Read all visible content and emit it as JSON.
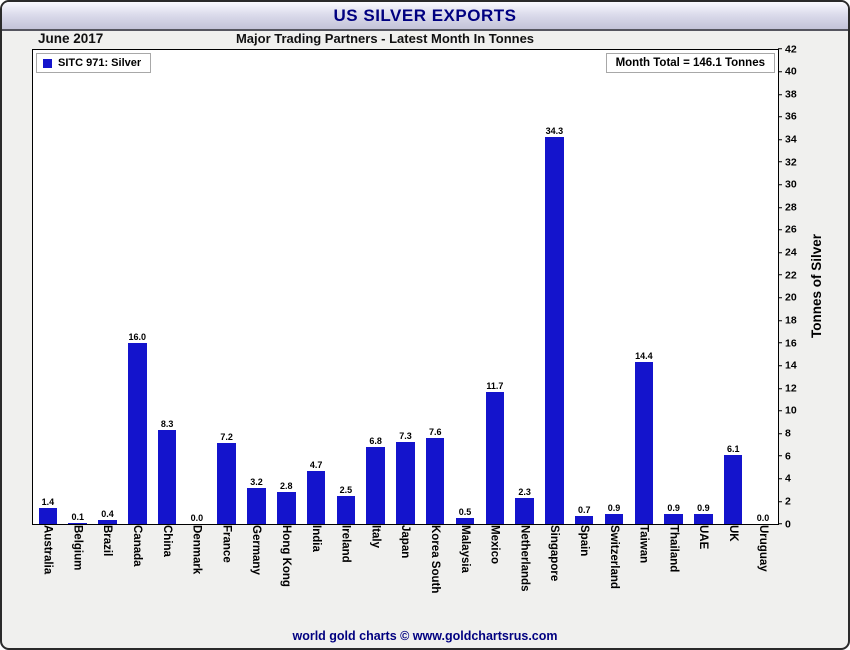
{
  "window": {
    "title": "US SILVER EXPORTS"
  },
  "header": {
    "date": "June 2017",
    "subtitle": "Major Trading Partners - Latest Month In Tonnes"
  },
  "legend": {
    "label": "SITC 971: Silver"
  },
  "annotations": {
    "month_total": "Month Total = 146.1 Tonnes"
  },
  "footer": {
    "credit": "world gold charts © www.goldchartsrus.com"
  },
  "colors": {
    "bar": "#1414cc",
    "title_text": "#000080",
    "footer_text": "#000080",
    "titlebar_gradient_top": "#fafaff",
    "titlebar_gradient_bottom": "#c3c3d8"
  },
  "chart_data": {
    "type": "bar",
    "title": "US SILVER EXPORTS",
    "subtitle": "Major Trading Partners - Latest Month In Tonnes",
    "period": "June 2017",
    "month_total_tonnes": 146.1,
    "categories": [
      "Australia",
      "Belgium",
      "Brazil",
      "Canada",
      "China",
      "Denmark",
      "France",
      "Germany",
      "Hong Kong",
      "India",
      "Ireland",
      "Italy",
      "Japan",
      "Korea South",
      "Malaysia",
      "Mexico",
      "Netherlands",
      "Singapore",
      "Spain",
      "Switzerland",
      "Taiwan",
      "Thailand",
      "UAE",
      "UK",
      "Uruguay"
    ],
    "series": [
      {
        "name": "SITC 971: Silver",
        "values": [
          1.4,
          0.1,
          0.4,
          16.0,
          8.3,
          0.0,
          7.2,
          3.2,
          2.8,
          4.7,
          2.5,
          6.8,
          7.3,
          7.6,
          0.5,
          11.7,
          2.3,
          34.3,
          0.7,
          0.9,
          14.4,
          0.9,
          0.9,
          6.1,
          0.0
        ]
      }
    ],
    "xlabel": "",
    "ylabel": "Tonnes of Silver",
    "ylim": [
      0,
      42
    ],
    "ytick_step": 2,
    "grid": false,
    "legend_position": "top-left",
    "yaxis_side": "right",
    "value_labels_shown": true
  }
}
